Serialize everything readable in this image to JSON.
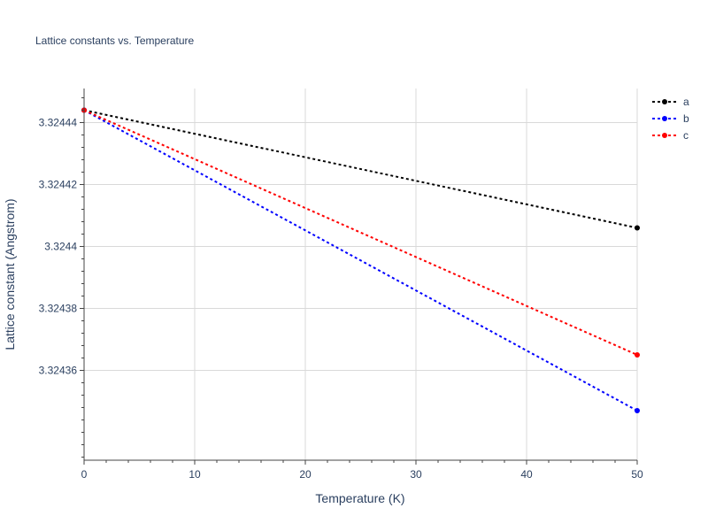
{
  "chart_data": {
    "type": "line",
    "title": "Lattice constants vs. Temperature",
    "xlabel": "Temperature (K)",
    "ylabel": "Lattice constant (Angstrom)",
    "x": [
      0,
      50
    ],
    "xlim": [
      0,
      50
    ],
    "ylim": [
      3.324331,
      3.324451
    ],
    "x_ticks": [
      0,
      10,
      20,
      30,
      40,
      50
    ],
    "x_tick_labels": [
      "0",
      "10",
      "20",
      "30",
      "40",
      "50"
    ],
    "y_ticks": [
      3.32436,
      3.32438,
      3.3244,
      3.32442,
      3.32444
    ],
    "y_tick_labels": [
      "3.32436",
      "3.32438",
      "3.3244",
      "3.32442",
      "3.32444"
    ],
    "grid": true,
    "legend_position": "top-right",
    "series": [
      {
        "name": "a",
        "color": "#000000",
        "values": [
          3.324444,
          3.324406
        ]
      },
      {
        "name": "b",
        "color": "#0000ff",
        "values": [
          3.324444,
          3.324347
        ]
      },
      {
        "name": "c",
        "color": "#ff0000",
        "values": [
          3.324444,
          3.324365
        ]
      }
    ]
  }
}
